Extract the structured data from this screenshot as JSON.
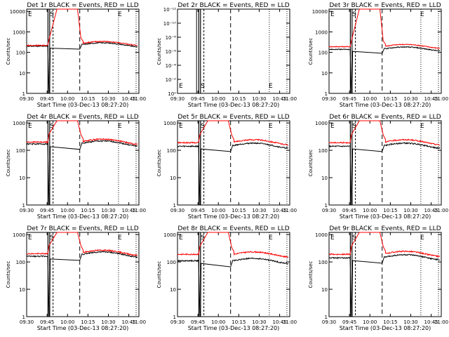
{
  "figure": {
    "panel_title_suffix": " BLACK = Events, RED = LLD",
    "xlabel": "Start Time (03-Dec-13 08:27:20)",
    "ylabel": "Counts/sec",
    "x_tick_labels": [
      "09:30",
      "09:45",
      "10:00",
      "10:15",
      "10:30",
      "10:45",
      "11:00"
    ],
    "colors": {
      "events": "#000000",
      "lld": "#ff0000"
    },
    "marker_labels": [
      "E",
      "S",
      "E"
    ]
  },
  "chart_data": [
    {
      "type": "line",
      "title": "Det 1r",
      "scale": "log",
      "y_tick_labels": [
        "1",
        "10",
        "100",
        "1000",
        "10000"
      ],
      "ylim": [
        1,
        13000
      ],
      "series": [
        {
          "name": "BLACK = Events",
          "baseline": 200,
          "post": 240,
          "flare": false
        },
        {
          "name": "RED = LLD",
          "baseline": 220,
          "post": 280,
          "flare": true,
          "peak": 13000
        }
      ]
    },
    {
      "type": "line",
      "title": "Det 2r",
      "scale": "log",
      "y_tick_labels": [
        "10⁰",
        "10⁻²",
        "10⁻⁴",
        "10⁻⁶",
        "10⁻⁸",
        "10⁻¹⁰",
        "10⁻¹²"
      ],
      "ylim": [
        1,
        1e-12
      ],
      "series": []
    },
    {
      "type": "line",
      "title": "Det 3r",
      "scale": "log",
      "y_tick_labels": [
        "1",
        "10",
        "100",
        "1000",
        "10000"
      ],
      "ylim": [
        1,
        13000
      ],
      "series": [
        {
          "name": "BLACK = Events",
          "baseline": 140,
          "post": 150,
          "flare": false
        },
        {
          "name": "RED = LLD",
          "baseline": 190,
          "post": 200,
          "flare": true,
          "peak": 13000
        }
      ]
    },
    {
      "type": "line",
      "title": "Det 4r",
      "scale": "log",
      "y_tick_labels": [
        "1",
        "10",
        "100",
        "1000"
      ],
      "ylim": [
        1,
        1200
      ],
      "series": [
        {
          "name": "BLACK = Events",
          "baseline": 170,
          "post": 180,
          "flare": false
        },
        {
          "name": "RED = LLD",
          "baseline": 200,
          "post": 210,
          "flare": true,
          "peak": 1200
        }
      ]
    },
    {
      "type": "line",
      "title": "Det 5r",
      "scale": "log",
      "y_tick_labels": [
        "1",
        "10",
        "100",
        "1000"
      ],
      "ylim": [
        1,
        1200
      ],
      "series": [
        {
          "name": "BLACK = Events",
          "baseline": 140,
          "post": 150,
          "flare": false
        },
        {
          "name": "RED = LLD",
          "baseline": 190,
          "post": 200,
          "flare": true,
          "peak": 1200
        }
      ]
    },
    {
      "type": "line",
      "title": "Det 6r",
      "scale": "log",
      "y_tick_labels": [
        "1",
        "10",
        "100",
        "1000"
      ],
      "ylim": [
        1,
        1200
      ],
      "series": [
        {
          "name": "BLACK = Events",
          "baseline": 140,
          "post": 150,
          "flare": false
        },
        {
          "name": "RED = LLD",
          "baseline": 190,
          "post": 200,
          "flare": true,
          "peak": 1200
        }
      ]
    },
    {
      "type": "line",
      "title": "Det 7r",
      "scale": "log",
      "y_tick_labels": [
        "1",
        "10",
        "100",
        "1000"
      ],
      "ylim": [
        1,
        1200
      ],
      "series": [
        {
          "name": "BLACK = Events",
          "baseline": 160,
          "post": 190,
          "flare": false
        },
        {
          "name": "RED = LLD",
          "baseline": 200,
          "post": 220,
          "flare": true,
          "peak": 1200
        }
      ]
    },
    {
      "type": "line",
      "title": "Det 8r",
      "scale": "log",
      "y_tick_labels": [
        "1",
        "10",
        "100",
        "1000"
      ],
      "ylim": [
        1,
        1200
      ],
      "series": [
        {
          "name": "BLACK = Events",
          "baseline": 110,
          "post": 110,
          "flare": false
        },
        {
          "name": "RED = LLD",
          "baseline": 190,
          "post": 190,
          "flare": true,
          "peak": 1200
        }
      ]
    },
    {
      "type": "line",
      "title": "Det 9r",
      "scale": "log",
      "y_tick_labels": [
        "1",
        "10",
        "100",
        "1000"
      ],
      "ylim": [
        1,
        1200
      ],
      "series": [
        {
          "name": "BLACK = Events",
          "baseline": 140,
          "post": 150,
          "flare": false
        },
        {
          "name": "RED = LLD",
          "baseline": 190,
          "post": 200,
          "flare": true,
          "peak": 1200
        }
      ]
    }
  ]
}
